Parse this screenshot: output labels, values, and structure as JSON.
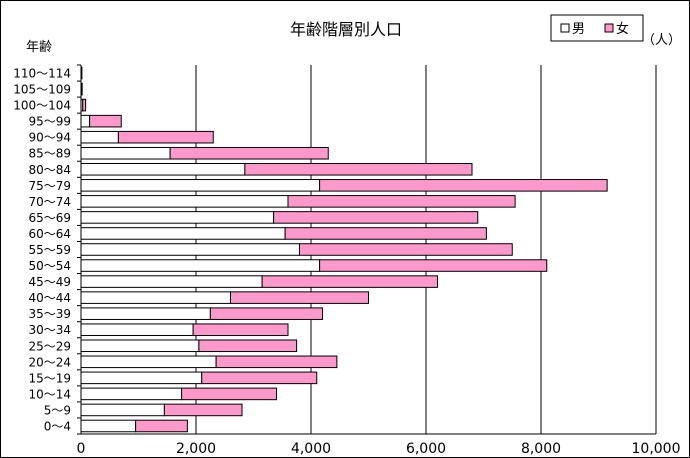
{
  "chart_data": {
    "type": "bar",
    "orientation": "horizontal",
    "stacked": true,
    "title": "年齢階層別人口",
    "ylabel": "年齢",
    "unit": "（人）",
    "xlim": [
      0,
      10000
    ],
    "xticks": [
      "0",
      "2,000",
      "4,000",
      "6,000",
      "8,000",
      "10,000"
    ],
    "grid": true,
    "legend_position": "top-right",
    "categories": [
      "0～4",
      "5～9",
      "10～14",
      "15～19",
      "20～24",
      "25～29",
      "30～34",
      "35～39",
      "40～44",
      "45～49",
      "50～54",
      "55～59",
      "60～64",
      "65～69",
      "70～74",
      "75～79",
      "80～84",
      "85～89",
      "90～94",
      "95～99",
      "100～104",
      "105～109",
      "110～114"
    ],
    "series": [
      {
        "name": "男",
        "color": "#ffffff",
        "values": [
          950,
          1450,
          1750,
          2100,
          2350,
          2050,
          1950,
          2250,
          2600,
          3150,
          4150,
          3800,
          3550,
          3350,
          3600,
          4150,
          2850,
          1550,
          650,
          150,
          30,
          10,
          5
        ]
      },
      {
        "name": "女",
        "color": "#ff99cc",
        "values": [
          900,
          1350,
          1650,
          2000,
          2100,
          1700,
          1650,
          1950,
          2400,
          3050,
          3950,
          3700,
          3500,
          3550,
          3950,
          5000,
          3950,
          2750,
          1650,
          550,
          50,
          10,
          5
        ]
      }
    ]
  }
}
